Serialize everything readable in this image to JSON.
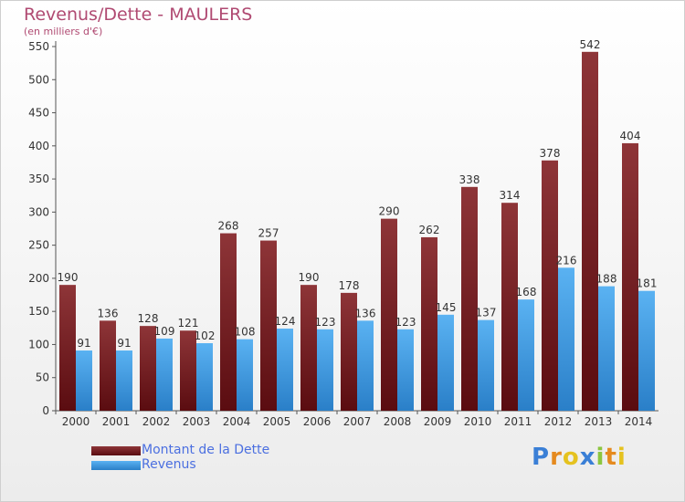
{
  "chart_data": {
    "type": "bar",
    "title": "Revenus/Dette - MAULERS",
    "subtitle": "(en milliers d'€)",
    "categories": [
      "2000",
      "2001",
      "2002",
      "2003",
      "2004",
      "2005",
      "2006",
      "2007",
      "2008",
      "2009",
      "2010",
      "2011",
      "2012",
      "2013",
      "2014"
    ],
    "series": [
      {
        "name": "Montant de la Dette",
        "color": "#7a1f22",
        "values": [
          190,
          136,
          128,
          121,
          268,
          257,
          190,
          178,
          290,
          262,
          338,
          314,
          378,
          542,
          404
        ]
      },
      {
        "name": "Revenus",
        "color": "#3d9be6",
        "values": [
          91,
          91,
          109,
          102,
          108,
          124,
          123,
          136,
          123,
          145,
          137,
          168,
          216,
          188,
          181
        ]
      }
    ],
    "yticks": [
      0,
      50,
      100,
      150,
      200,
      250,
      300,
      350,
      400,
      450,
      500,
      550
    ],
    "ylim": [
      0,
      550
    ],
    "grid": false,
    "legend": "bottom-left"
  },
  "logo": {
    "letters": [
      "P",
      "r",
      "o",
      "x",
      "i",
      "t",
      "i"
    ],
    "colors": [
      "#3a7fd6",
      "#e58a1f",
      "#e5c21f",
      "#3a7fd6",
      "#8cc63f",
      "#e58a1f",
      "#e5c21f"
    ]
  }
}
